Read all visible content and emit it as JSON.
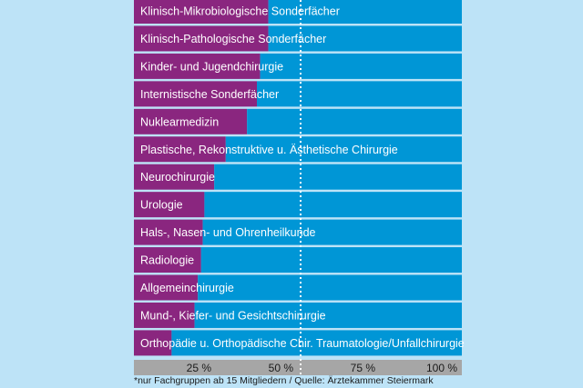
{
  "chart_data": {
    "type": "bar",
    "orientation": "horizontal",
    "stacked": true,
    "categories": [
      "Klinisch-Mikrobiologische Sonderfächer",
      "Klinisch-Pathologische Sonderfächer",
      "Kinder- und Jugendchirurgie",
      "Internistische Sonderfächer",
      "Nuklearmedizin",
      "Plastische, Rekonstruktive u. Ästhetische Chirurgie",
      "Neurochirurgie",
      "Urologie",
      "Hals-, Nasen- und Ohrenheilkunde",
      "Radiologie",
      "Allgemeinchirurgie",
      "Mund-, Kiefer- und Gesichtschirurgie",
      "Orthopädie u. Orthopädische Chir. Traumatologie/Unfallchirurgie"
    ],
    "series": [
      {
        "values": [
          41,
          41,
          38.5,
          37.5,
          34.5,
          28,
          24.5,
          21.5,
          21,
          20.5,
          19.5,
          18.5,
          11.5
        ]
      },
      {
        "values": [
          59,
          59,
          61.5,
          62.5,
          65.5,
          72,
          75.5,
          78.5,
          79,
          79.5,
          80.5,
          81.5,
          88.5
        ]
      }
    ],
    "xticks": [
      "25 %",
      "50 %",
      "75 %",
      "100 %"
    ],
    "xlim": [
      0,
      100
    ],
    "reference_line": 50,
    "colors": {
      "series1": "#8a267f",
      "series2": "#0096d6",
      "background": "#bde3f7",
      "axis_band": "#a6a6a6",
      "reference_line": "#ffffff"
    },
    "footnote": "*nur Fachgruppen ab 15 Mitgliedern / Quelle: Ärztekammer Steiermark"
  }
}
